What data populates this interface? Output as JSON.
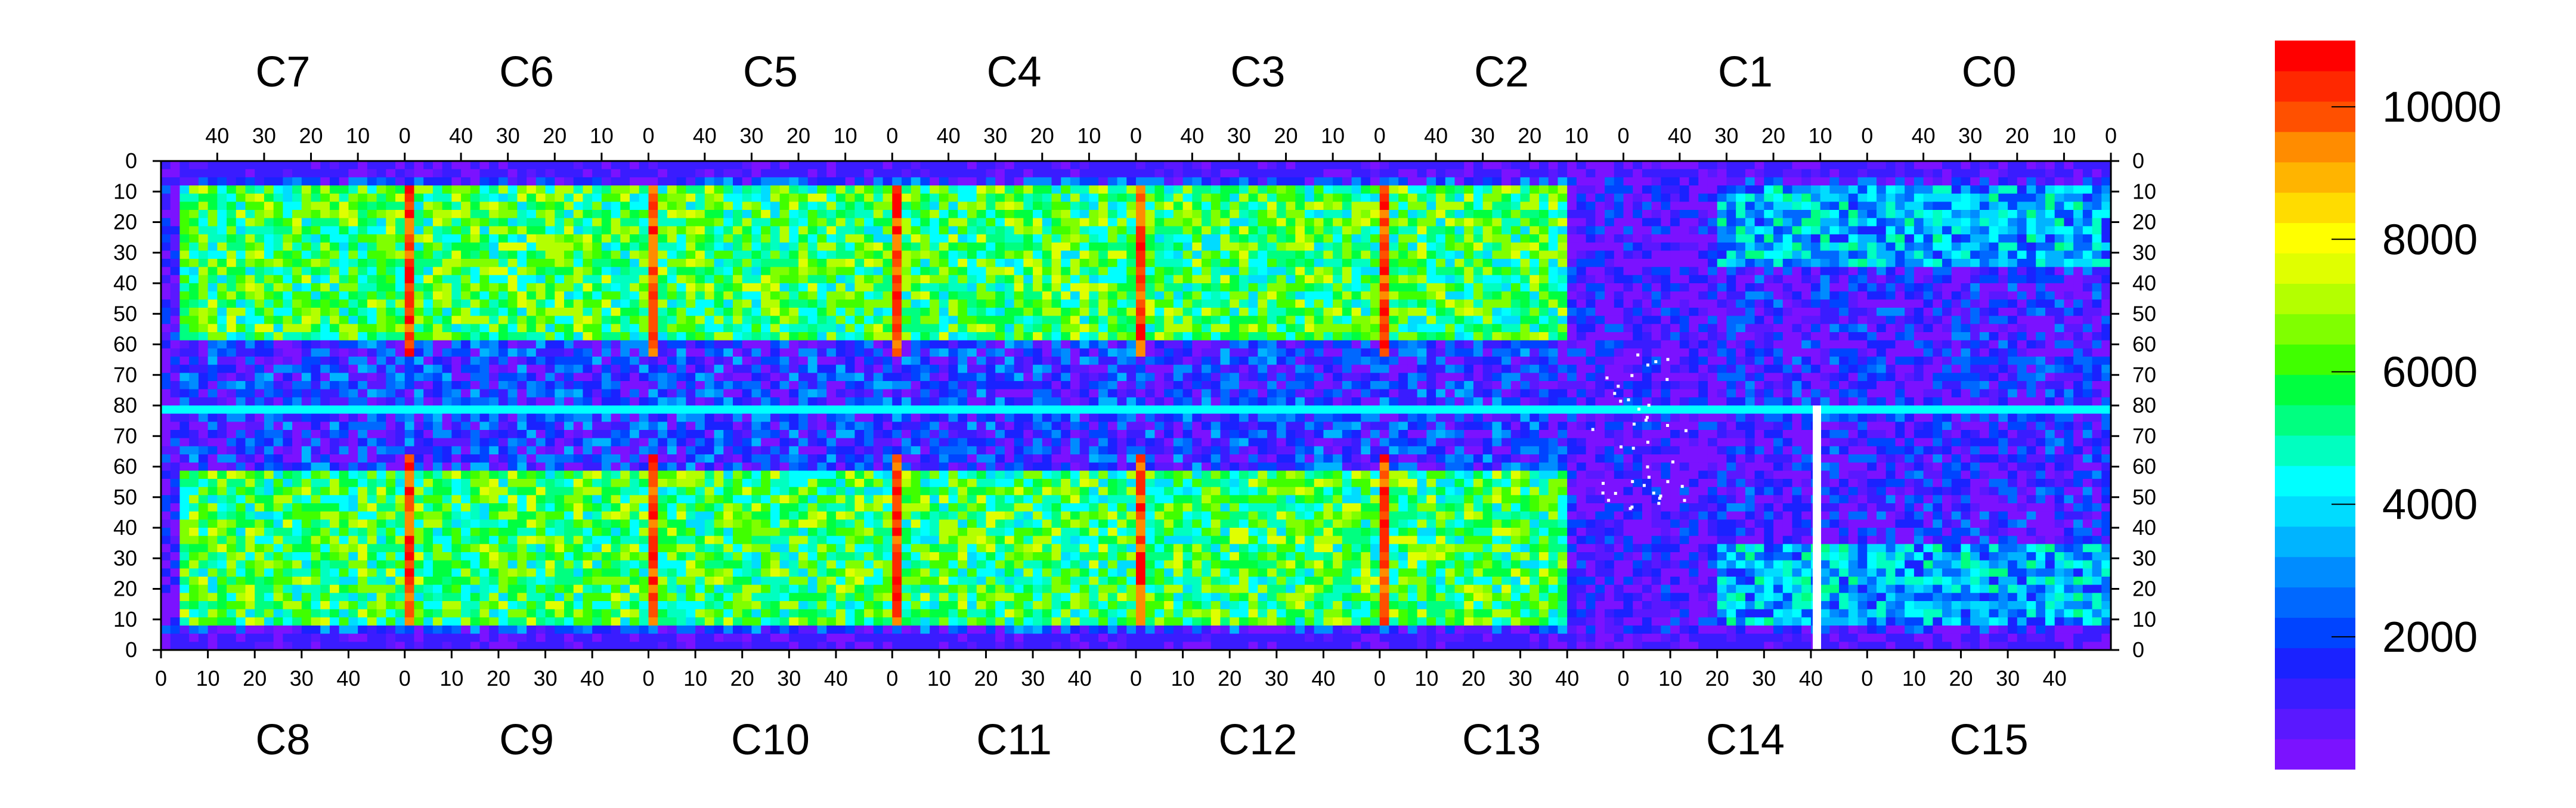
{
  "chart_data": {
    "type": "heatmap",
    "title": "",
    "xlabel": "",
    "ylabel": "",
    "top_chips": [
      "C7",
      "C6",
      "C5",
      "C4",
      "C3",
      "C2",
      "C1",
      "C0"
    ],
    "bottom_chips": [
      "C8",
      "C9",
      "C10",
      "C11",
      "C12",
      "C13",
      "C14",
      "C15"
    ],
    "top_x_ticks": [
      "40",
      "30",
      "20",
      "10",
      "0"
    ],
    "bottom_x_ticks": [
      "0",
      "10",
      "20",
      "30",
      "40"
    ],
    "y_ticks": [
      "0",
      "10",
      "20",
      "30",
      "40",
      "50",
      "60",
      "70",
      "80",
      "70",
      "60",
      "50",
      "40",
      "30",
      "20",
      "10",
      "0"
    ],
    "colorbar": {
      "ticks": [
        "2000",
        "4000",
        "6000",
        "8000",
        "10000"
      ],
      "tick_values": [
        2000,
        4000,
        6000,
        8000,
        10000
      ],
      "range": [
        0,
        11000
      ],
      "colors": [
        "#7b12ff",
        "#5a18ff",
        "#3a1cff",
        "#1a22ff",
        "#0044ff",
        "#0068ff",
        "#008cff",
        "#00b4ff",
        "#00dcff",
        "#00ffff",
        "#00ffc0",
        "#00ff80",
        "#00ff40",
        "#40ff00",
        "#80ff00",
        "#b4ff00",
        "#e0ff00",
        "#ffff00",
        "#ffdc00",
        "#ffb400",
        "#ff8c00",
        "#ff5000",
        "#ff2800",
        "#ff0000"
      ]
    },
    "chips_per_row": 8,
    "rows_per_chip": 80,
    "cols_per_chip": 52,
    "low_region": "chips C13/C14 and right part of C2/C1 mostly low (~1000)",
    "hot_columns": "vertical red bands near column 0 of chips C6/C9, C5/C10, C4/C11, C3/C12, C2/C13"
  }
}
